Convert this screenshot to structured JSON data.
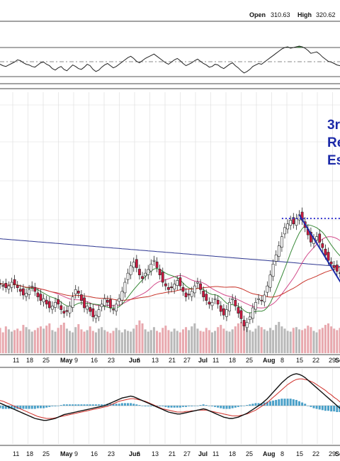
{
  "colors": {
    "frame": "#333333",
    "grid": "#dcdcdc",
    "rsi_line": "#222222",
    "rsi_overbought_fill": "#3a8a3a",
    "price_line": "#222222",
    "candle_up": "#ffffff",
    "candle_down": "#d01840",
    "ma_long": "#2c3590",
    "ma_mid": "#3a8a3a",
    "ma_short": "#d24a8a",
    "ma_slow_red": "#c8342a",
    "volume_up": "#b8b8b8",
    "volume_down": "#e8a8ae",
    "macd_line": "#111111",
    "signal_line": "#d0302a",
    "histogram": "#4aa0c8",
    "annotation_blue": "#1c2aa8",
    "dotted_resistance": "#3a3ad0"
  },
  "header": {
    "open_label": "Open",
    "open_value": "310.63",
    "high_label": "High",
    "high_value": "320.62"
  },
  "annotation": {
    "line1": "3r",
    "line2": "Re",
    "line3": "Es"
  },
  "chart_data": [
    {
      "type": "line",
      "panel": "rsi",
      "x": [
        0,
        1,
        2,
        3,
        4,
        5,
        6,
        7,
        8,
        9,
        10,
        11,
        12,
        13,
        14,
        15,
        16,
        17,
        18,
        19,
        20,
        21,
        22,
        23,
        24,
        25,
        26,
        27,
        28,
        29,
        30,
        31,
        32,
        33,
        34,
        35,
        36,
        37,
        38,
        39,
        40,
        41,
        42,
        43,
        44,
        45,
        46,
        47,
        48,
        49,
        50,
        51,
        52,
        53,
        54,
        55,
        56,
        57,
        58,
        59,
        60,
        61,
        62,
        63,
        64,
        65,
        66,
        67,
        68,
        69,
        70,
        71,
        72,
        73,
        74,
        75,
        76,
        77,
        78,
        79,
        80,
        81,
        82,
        83,
        84,
        85,
        86,
        87,
        88,
        89,
        90,
        91,
        92,
        93,
        94,
        95,
        96,
        97,
        98,
        99,
        100,
        101,
        102,
        103,
        104,
        105,
        106,
        107,
        108,
        109,
        110,
        111,
        112,
        113,
        114,
        115,
        116,
        117,
        118,
        119
      ],
      "values": [
        50,
        47,
        45,
        44,
        46,
        48,
        50,
        53,
        52,
        49,
        47,
        46,
        44,
        43,
        46,
        49,
        50,
        47,
        45,
        41,
        39,
        42,
        44,
        40,
        38,
        42,
        46,
        44,
        41,
        40,
        43,
        47,
        45,
        40,
        37,
        39,
        43,
        46,
        48,
        45,
        42,
        44,
        47,
        50,
        53,
        56,
        58,
        55,
        51,
        49,
        52,
        55,
        57,
        59,
        61,
        58,
        55,
        52,
        49,
        47,
        50,
        53,
        55,
        52,
        48,
        45,
        47,
        49,
        52,
        54,
        51,
        48,
        46,
        43,
        44,
        47,
        46,
        43,
        41,
        44,
        47,
        49,
        45,
        42,
        38,
        35,
        37,
        40,
        44,
        46,
        48,
        47,
        50,
        53,
        56,
        59,
        62,
        65,
        68,
        70,
        71,
        69,
        70,
        71,
        72,
        71,
        69,
        66,
        62,
        63,
        64,
        61,
        57,
        54,
        51,
        50,
        48,
        46,
        45,
        47
      ]
    },
    {
      "type": "candlestick",
      "panel": "price",
      "x": [
        0,
        1,
        2,
        3,
        4,
        5,
        6,
        7,
        8,
        9,
        10,
        11,
        12,
        13,
        14,
        15,
        16,
        17,
        18,
        19,
        20,
        21,
        22,
        23,
        24,
        25,
        26,
        27,
        28,
        29,
        30,
        31,
        32,
        33,
        34,
        35,
        36,
        37,
        38,
        39,
        40,
        41,
        42,
        43,
        44,
        45,
        46,
        47,
        48,
        49,
        50,
        51,
        52,
        53,
        54,
        55,
        56,
        57,
        58,
        59,
        60,
        61,
        62,
        63,
        64,
        65,
        66,
        67,
        68,
        69,
        70,
        71,
        72,
        73,
        74,
        75,
        76,
        77,
        78,
        79,
        80,
        81,
        82,
        83,
        84,
        85,
        86,
        87,
        88,
        89,
        90,
        91,
        92,
        93,
        94,
        95,
        96,
        97,
        98,
        99,
        100,
        101,
        102,
        103,
        104,
        105,
        106,
        107,
        108,
        109,
        110,
        111,
        112,
        113,
        114,
        115,
        116,
        117,
        118,
        119
      ],
      "close": [
        238,
        237,
        236,
        235,
        236,
        238,
        237,
        235,
        233,
        231,
        232,
        234,
        236,
        233,
        230,
        228,
        229,
        226,
        224,
        225,
        227,
        226,
        223,
        221,
        222,
        225,
        230,
        234,
        232,
        228,
        224,
        225,
        222,
        219,
        220,
        223,
        226,
        229,
        227,
        224,
        223,
        226,
        229,
        233,
        238,
        243,
        247,
        249,
        246,
        242,
        240,
        243,
        245,
        248,
        250,
        246,
        242,
        238,
        236,
        234,
        235,
        237,
        239,
        236,
        233,
        230,
        231,
        233,
        236,
        238,
        234,
        230,
        228,
        226,
        227,
        229,
        226,
        222,
        220,
        223,
        227,
        229,
        225,
        221,
        218,
        214,
        216,
        219,
        224,
        227,
        229,
        228,
        231,
        236,
        242,
        248,
        253,
        258,
        263,
        268,
        270,
        272,
        270,
        273,
        275,
        272,
        268,
        264,
        260,
        262,
        263,
        260,
        257,
        253,
        250,
        248,
        246,
        244,
        243,
        245
      ]
    },
    {
      "type": "bar",
      "panel": "volume",
      "x": [
        0,
        1,
        2,
        3,
        4,
        5,
        6,
        7,
        8,
        9,
        10,
        11,
        12,
        13,
        14,
        15,
        16,
        17,
        18,
        19,
        20,
        21,
        22,
        23,
        24,
        25,
        26,
        27,
        28,
        29,
        30,
        31,
        32,
        33,
        34,
        35,
        36,
        37,
        38,
        39,
        40,
        41,
        42,
        43,
        44,
        45,
        46,
        47,
        48,
        49,
        50,
        51,
        52,
        53,
        54,
        55,
        56,
        57,
        58,
        59,
        60,
        61,
        62,
        63,
        64,
        65,
        66,
        67,
        68,
        69,
        70,
        71,
        72,
        73,
        74,
        75,
        76,
        77,
        78,
        79,
        80,
        81,
        82,
        83,
        84,
        85,
        86,
        87,
        88,
        89,
        90,
        91,
        92,
        93,
        94,
        95,
        96,
        97,
        98,
        99,
        100,
        101,
        102,
        103,
        104,
        105,
        106,
        107,
        108,
        109,
        110,
        111,
        112,
        113,
        114,
        115,
        116,
        117,
        118,
        119
      ],
      "values": [
        30,
        34,
        28,
        36,
        32,
        29,
        31,
        33,
        30,
        38,
        35,
        32,
        29,
        31,
        34,
        36,
        33,
        37,
        40,
        31,
        29,
        34,
        38,
        41,
        33,
        30,
        28,
        35,
        39,
        32,
        29,
        31,
        36,
        30,
        28,
        33,
        35,
        31,
        29,
        27,
        30,
        34,
        31,
        28,
        32,
        30,
        29,
        33,
        38,
        44,
        40,
        32,
        29,
        31,
        35,
        30,
        28,
        34,
        37,
        31,
        29,
        33,
        30,
        28,
        32,
        35,
        31,
        36,
        40,
        33,
        30,
        29,
        34,
        31,
        28,
        30,
        35,
        38,
        33,
        30,
        29,
        32,
        36,
        40,
        42,
        39,
        34,
        31,
        29,
        33,
        37,
        35,
        32,
        30,
        34,
        31,
        38,
        42,
        36,
        33,
        30,
        29,
        34,
        35,
        32,
        31,
        33,
        37,
        35,
        30,
        28,
        32,
        34,
        38,
        40,
        36,
        33,
        31,
        34,
        30
      ]
    },
    {
      "type": "line",
      "panel": "macd",
      "x": [
        0,
        1,
        2,
        3,
        4,
        5,
        6,
        7,
        8,
        9,
        10,
        11,
        12,
        13,
        14,
        15,
        16,
        17,
        18,
        19,
        20,
        21,
        22,
        23,
        24,
        25,
        26,
        27,
        28,
        29,
        30,
        31,
        32,
        33,
        34,
        35,
        36,
        37,
        38,
        39,
        40,
        41,
        42,
        43,
        44,
        45,
        46,
        47,
        48,
        49,
        50,
        51,
        52,
        53,
        54,
        55,
        56,
        57,
        58,
        59,
        60,
        61,
        62,
        63,
        64,
        65,
        66,
        67,
        68,
        69,
        70,
        71,
        72,
        73,
        74,
        75,
        76,
        77,
        78,
        79,
        80,
        81,
        82,
        83,
        84,
        85,
        86,
        87,
        88,
        89,
        90,
        91,
        92,
        93,
        94,
        95,
        96,
        97,
        98,
        99,
        100,
        101,
        102,
        103,
        104,
        105,
        106,
        107,
        108,
        109,
        110,
        111,
        112,
        113,
        114,
        115,
        116,
        117,
        118,
        119
      ],
      "series": [
        {
          "values": [
            0.6,
            0.4,
            0.2,
            0.0,
            -0.2,
            -0.4,
            -0.6,
            -0.8,
            -1.0,
            -1.2,
            -1.4,
            -1.6,
            -1.8,
            -2.0,
            -2.1,
            -2.2,
            -2.3,
            -2.3,
            -2.2,
            -2.1,
            -2.0,
            -1.8,
            -1.6,
            -1.4,
            -1.3,
            -1.2,
            -1.1,
            -1.0,
            -0.9,
            -0.8,
            -0.7,
            -0.6,
            -0.5,
            -0.4,
            -0.3,
            -0.2,
            -0.1,
            0.0,
            0.2,
            0.4,
            0.6,
            0.8,
            1.0,
            1.2,
            1.3,
            1.4,
            1.5,
            1.4,
            1.2,
            1.0,
            0.8,
            0.6,
            0.4,
            0.2,
            0.0,
            -0.2,
            -0.4,
            -0.6,
            -0.8,
            -1.0,
            -1.1,
            -1.2,
            -1.3,
            -1.3,
            -1.2,
            -1.1,
            -1.0,
            -0.9,
            -0.8,
            -0.7,
            -0.6,
            -0.5,
            -0.6,
            -0.8,
            -1.0,
            -1.2,
            -1.4,
            -1.6,
            -1.8,
            -1.9,
            -2.0,
            -2.0,
            -1.9,
            -1.8,
            -1.6,
            -1.4,
            -1.2,
            -0.9,
            -0.6,
            -0.3,
            0.0,
            0.3,
            0.7,
            1.1,
            1.6,
            2.1,
            2.6,
            3.1,
            3.6,
            4.0,
            4.4,
            4.7,
            4.9,
            5.0,
            4.9,
            4.7,
            4.4,
            4.0,
            3.6,
            3.2,
            2.8,
            2.4,
            2.0,
            1.6,
            1.2,
            0.8,
            0.4,
            0.0,
            -0.4,
            -0.8
          ]
        },
        {
          "values": [
            0.9,
            0.8,
            0.7,
            0.5,
            0.3,
            0.1,
            -0.1,
            -0.3,
            -0.5,
            -0.7,
            -0.9,
            -1.1,
            -1.3,
            -1.5,
            -1.7,
            -1.8,
            -1.9,
            -2.0,
            -2.0,
            -2.0,
            -1.9,
            -1.8,
            -1.7,
            -1.6,
            -1.5,
            -1.4,
            -1.3,
            -1.2,
            -1.1,
            -1.0,
            -0.9,
            -0.8,
            -0.7,
            -0.6,
            -0.5,
            -0.4,
            -0.3,
            -0.2,
            -0.1,
            0.1,
            0.3,
            0.5,
            0.7,
            0.8,
            0.9,
            1.0,
            1.1,
            1.1,
            1.0,
            0.9,
            0.8,
            0.7,
            0.5,
            0.3,
            0.1,
            -0.1,
            -0.3,
            -0.5,
            -0.6,
            -0.7,
            -0.8,
            -0.9,
            -1.0,
            -1.0,
            -1.0,
            -0.9,
            -0.9,
            -0.8,
            -0.8,
            -0.7,
            -0.7,
            -0.7,
            -0.7,
            -0.8,
            -0.9,
            -1.0,
            -1.1,
            -1.2,
            -1.3,
            -1.4,
            -1.5,
            -1.6,
            -1.6,
            -1.6,
            -1.5,
            -1.4,
            -1.3,
            -1.1,
            -0.9,
            -0.7,
            -0.4,
            -0.1,
            0.2,
            0.5,
            0.9,
            1.3,
            1.7,
            2.1,
            2.5,
            2.9,
            3.3,
            3.6,
            3.9,
            4.1,
            4.2,
            4.2,
            4.1,
            4.0,
            3.8,
            3.6,
            3.3,
            3.0,
            2.7,
            2.4,
            2.0,
            1.7,
            1.3,
            1.0,
            0.6,
            0.3
          ]
        }
      ]
    }
  ],
  "x_axis": {
    "labels": [
      {
        "text": "11",
        "bold": false
      },
      {
        "text": "18",
        "bold": false
      },
      {
        "text": "25",
        "bold": false
      },
      {
        "text": "May",
        "bold": true
      },
      {
        "text": "9",
        "bold": false
      },
      {
        "text": "16",
        "bold": false
      },
      {
        "text": "23",
        "bold": false
      },
      {
        "text": "Jun",
        "bold": true
      },
      {
        "text": "6",
        "bold": false
      },
      {
        "text": "13",
        "bold": false
      },
      {
        "text": "21",
        "bold": false
      },
      {
        "text": "27",
        "bold": false
      },
      {
        "text": "Jul",
        "bold": true
      },
      {
        "text": "11",
        "bold": false
      },
      {
        "text": "18",
        "bold": false
      },
      {
        "text": "25",
        "bold": false
      },
      {
        "text": "Aug",
        "bold": true
      },
      {
        "text": "8",
        "bold": false
      },
      {
        "text": "15",
        "bold": false
      },
      {
        "text": "22",
        "bold": false
      },
      {
        "text": "29",
        "bold": false
      },
      {
        "text": "Sep",
        "bold": true
      }
    ]
  }
}
